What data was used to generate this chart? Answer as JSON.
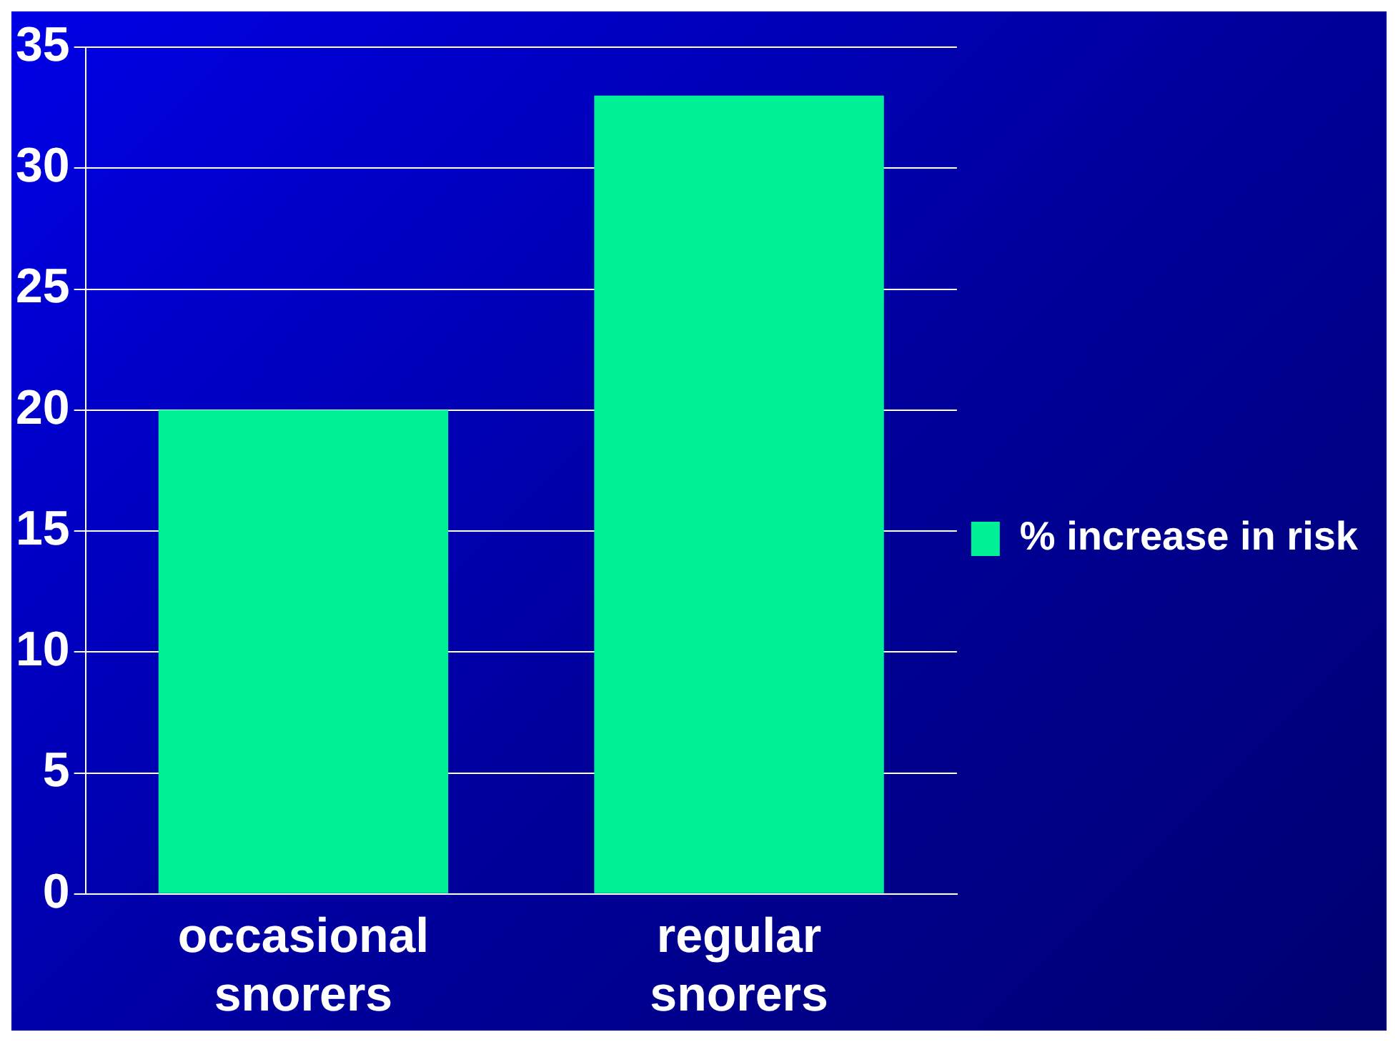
{
  "chart_data": {
    "type": "bar",
    "categories": [
      "occasional snorers",
      "regular snorers"
    ],
    "series": [
      {
        "name": "% increase in risk",
        "color": "#00f096",
        "values": [
          20,
          33
        ]
      }
    ],
    "ylim": [
      0,
      35
    ],
    "yticks": [
      0,
      5,
      10,
      15,
      20,
      25,
      30,
      35
    ],
    "grid": "y",
    "legend": "right"
  }
}
